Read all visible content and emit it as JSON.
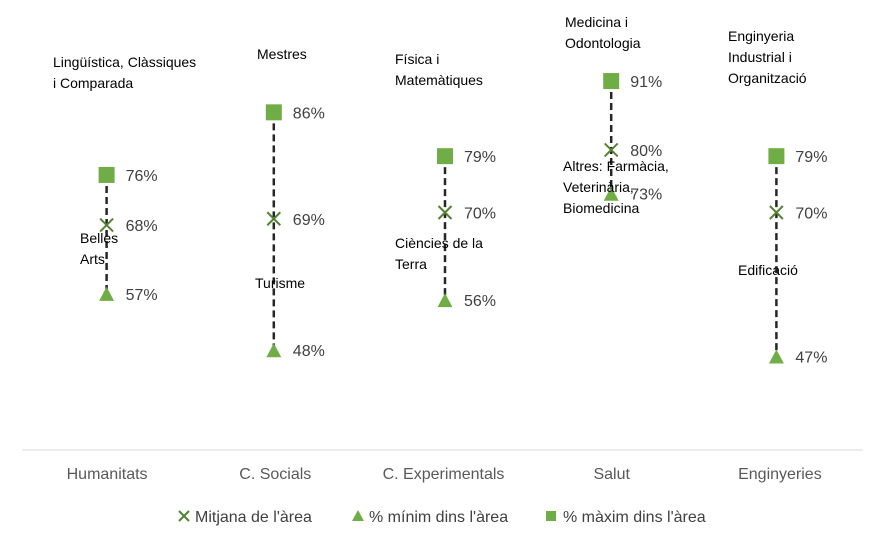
{
  "chart_data": {
    "type": "scatter",
    "title": "",
    "xlabel": "",
    "ylabel": "",
    "ylim": [
      0,
      100
    ],
    "grid": false,
    "legend_position": "bottom",
    "categories": [
      "Humanitats",
      "C. Socials",
      "C. Experimentals",
      "Salut",
      "Enginyeries"
    ],
    "series": [
      {
        "key": "mean",
        "name": "Mitjana de l'àrea",
        "marker": "x",
        "color": "#548235",
        "values": [
          68,
          69,
          70,
          80,
          70
        ],
        "labels": [
          "68%",
          "69%",
          "70%",
          "80%",
          "70%"
        ]
      },
      {
        "key": "min",
        "name": "% mínim dins l'àrea",
        "marker": "triangle",
        "color": "#70AD47",
        "values": [
          57,
          48,
          56,
          73,
          47
        ],
        "labels": [
          "57%",
          "48%",
          "56%",
          "73%",
          "47%"
        ]
      },
      {
        "key": "max",
        "name": "% màxim dins l'àrea",
        "marker": "square",
        "color": "#70AD47",
        "values": [
          76,
          86,
          79,
          91,
          79
        ],
        "labels": [
          "76%",
          "86%",
          "79%",
          "91%",
          "79%"
        ]
      }
    ],
    "annotations": [
      {
        "category": 0,
        "kind": "max",
        "lines": [
          "Lingüística, Clàssiques",
          "i Comparada"
        ]
      },
      {
        "category": 0,
        "kind": "min",
        "lines": [
          "Belles",
          "Arts"
        ]
      },
      {
        "category": 1,
        "kind": "max",
        "lines": [
          "Mestres"
        ]
      },
      {
        "category": 1,
        "kind": "min",
        "lines": [
          "Turisme"
        ]
      },
      {
        "category": 2,
        "kind": "max",
        "lines": [
          "Física i",
          "Matemàtiques"
        ]
      },
      {
        "category": 2,
        "kind": "min",
        "lines": [
          "Ciències de la",
          "Terra"
        ]
      },
      {
        "category": 3,
        "kind": "max",
        "lines": [
          "Medicina i",
          "Odontologia"
        ]
      },
      {
        "category": 3,
        "kind": "min",
        "lines": [
          "Altres: Farmàcia,",
          "Veterinària,",
          "Biomedicina"
        ]
      },
      {
        "category": 4,
        "kind": "max",
        "lines": [
          "Enginyeria",
          "Industrial i",
          "Organització"
        ]
      },
      {
        "category": 4,
        "kind": "min",
        "lines": [
          "Edificació"
        ]
      }
    ]
  }
}
